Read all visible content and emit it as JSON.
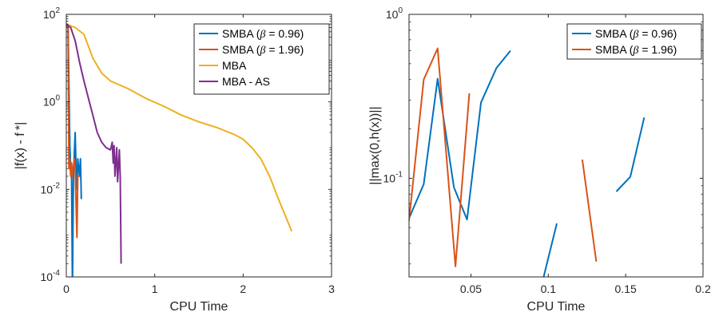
{
  "chart_data": [
    {
      "type": "line",
      "xlabel": "CPU Time",
      "ylabel": "|f(x) - f *|",
      "yscale": "log",
      "xlim": [
        0,
        3
      ],
      "ylim": [
        0.0001,
        100
      ],
      "xticks": [
        0,
        1,
        2,
        3
      ],
      "xtick_labels": [
        "0",
        "1",
        "2",
        "3"
      ],
      "yticks": [
        0.0001,
        0.01,
        1,
        100
      ],
      "ytick_labels": [
        {
          "base": "10",
          "exp": "-4"
        },
        {
          "base": "10",
          "exp": "-2"
        },
        {
          "base": "10",
          "exp": "0"
        },
        {
          "base": "10",
          "exp": "2"
        }
      ],
      "grid": false,
      "legend_position": "top-right",
      "series": [
        {
          "name": "SMBA (β = 0.96)",
          "label_prefix": "SMBA (",
          "label_symbol": "β",
          "label_suffix": " = 0.96)",
          "color": "#0072BD",
          "points": [
            [
              0.0,
              60
            ],
            [
              0.02,
              55
            ],
            [
              0.04,
              0.1
            ],
            [
              0.05,
              0.03
            ],
            [
              0.06,
              0.02
            ],
            [
              0.07,
              5e-05
            ],
            [
              0.08,
              0.02
            ],
            [
              0.1,
              0.2
            ],
            [
              0.11,
              0.03
            ],
            [
              0.12,
              0.01
            ],
            [
              0.13,
              0.05
            ],
            [
              0.14,
              0.03
            ],
            [
              0.15,
              0.02
            ],
            [
              0.16,
              0.05
            ],
            [
              0.17,
              0.006
            ]
          ]
        },
        {
          "name": "SMBA (β = 1.96)",
          "label_prefix": "SMBA (",
          "label_symbol": "β",
          "label_suffix": " = 1.96)",
          "color": "#D95319",
          "points": [
            [
              0.0,
              55
            ],
            [
              0.02,
              50
            ],
            [
              0.03,
              0.03
            ],
            [
              0.04,
              0.05
            ],
            [
              0.05,
              0.02
            ],
            [
              0.06,
              0.04
            ],
            [
              0.07,
              0.02
            ],
            [
              0.09,
              0.05
            ],
            [
              0.1,
              0.03
            ],
            [
              0.12,
              0.0008
            ],
            [
              0.13,
              0.02
            ],
            [
              0.15,
              0.02
            ]
          ]
        },
        {
          "name": "MBA",
          "color": "#EDB120",
          "points": [
            [
              0.0,
              60
            ],
            [
              0.1,
              50
            ],
            [
              0.2,
              35
            ],
            [
              0.3,
              10
            ],
            [
              0.4,
              4.5
            ],
            [
              0.5,
              3
            ],
            [
              0.7,
              2
            ],
            [
              0.9,
              1.2
            ],
            [
              1.1,
              0.8
            ],
            [
              1.3,
              0.5
            ],
            [
              1.5,
              0.35
            ],
            [
              1.7,
              0.26
            ],
            [
              1.9,
              0.18
            ],
            [
              2.0,
              0.14
            ],
            [
              2.1,
              0.09
            ],
            [
              2.2,
              0.05
            ],
            [
              2.3,
              0.02
            ],
            [
              2.4,
              0.006
            ],
            [
              2.55,
              0.0011
            ]
          ]
        },
        {
          "name": "MBA - AS",
          "color": "#7E2F8E",
          "points": [
            [
              0.0,
              60
            ],
            [
              0.05,
              50
            ],
            [
              0.1,
              25
            ],
            [
              0.15,
              8
            ],
            [
              0.2,
              3
            ],
            [
              0.25,
              1.2
            ],
            [
              0.3,
              0.5
            ],
            [
              0.35,
              0.2
            ],
            [
              0.4,
              0.12
            ],
            [
              0.45,
              0.09
            ],
            [
              0.5,
              0.08
            ],
            [
              0.52,
              0.12
            ],
            [
              0.53,
              0.04
            ],
            [
              0.54,
              0.1
            ],
            [
              0.55,
              0.02
            ],
            [
              0.57,
              0.09
            ],
            [
              0.58,
              0.015
            ],
            [
              0.6,
              0.08
            ],
            [
              0.61,
              0.02
            ],
            [
              0.62,
              0.0002
            ]
          ]
        }
      ]
    },
    {
      "type": "line",
      "xlabel": "CPU Time",
      "ylabel": "||max(0,h(x))||",
      "yscale": "log",
      "xlim": [
        0.01,
        0.2
      ],
      "ylim": [
        0.025,
        1
      ],
      "xticks": [
        0.05,
        0.1,
        0.15,
        0.2
      ],
      "xtick_labels": [
        "0.05",
        "0.1",
        "0.15",
        "0.2"
      ],
      "yticks": [
        0.1,
        1
      ],
      "ytick_labels": [
        {
          "base": "10",
          "exp": "-1"
        },
        {
          "base": "10",
          "exp": "0"
        }
      ],
      "grid": false,
      "legend_position": "top-right",
      "series": [
        {
          "name": "SMBA (β = 0.96)",
          "label_prefix": "SMBA (",
          "label_symbol": "β",
          "label_suffix": " = 0.96)",
          "color": "#0072BD",
          "segments": [
            [
              [
                0.01,
                0.057
              ],
              [
                0.0195,
                0.092
              ],
              [
                0.0285,
                0.405
              ],
              [
                0.039,
                0.088
              ],
              [
                0.0475,
                0.056
              ],
              [
                0.0565,
                0.29
              ],
              [
                0.0665,
                0.47
              ],
              [
                0.0755,
                0.6
              ]
            ],
            [
              [
                0.097,
                0.025
              ],
              [
                0.1055,
                0.053
              ]
            ],
            [
              [
                0.144,
                0.083
              ],
              [
                0.153,
                0.102
              ],
              [
                0.162,
                0.235
              ]
            ]
          ]
        },
        {
          "name": "SMBA (β = 1.96)",
          "label_prefix": "SMBA (",
          "label_symbol": "β",
          "label_suffix": " = 1.96)",
          "color": "#D95319",
          "segments": [
            [
              [
                0.01,
                0.055
              ],
              [
                0.0195,
                0.4
              ],
              [
                0.0285,
                0.62
              ],
              [
                0.04,
                0.029
              ],
              [
                0.049,
                0.33
              ]
            ],
            [
              [
                0.122,
                0.13
              ],
              [
                0.131,
                0.031
              ]
            ]
          ]
        }
      ]
    }
  ]
}
